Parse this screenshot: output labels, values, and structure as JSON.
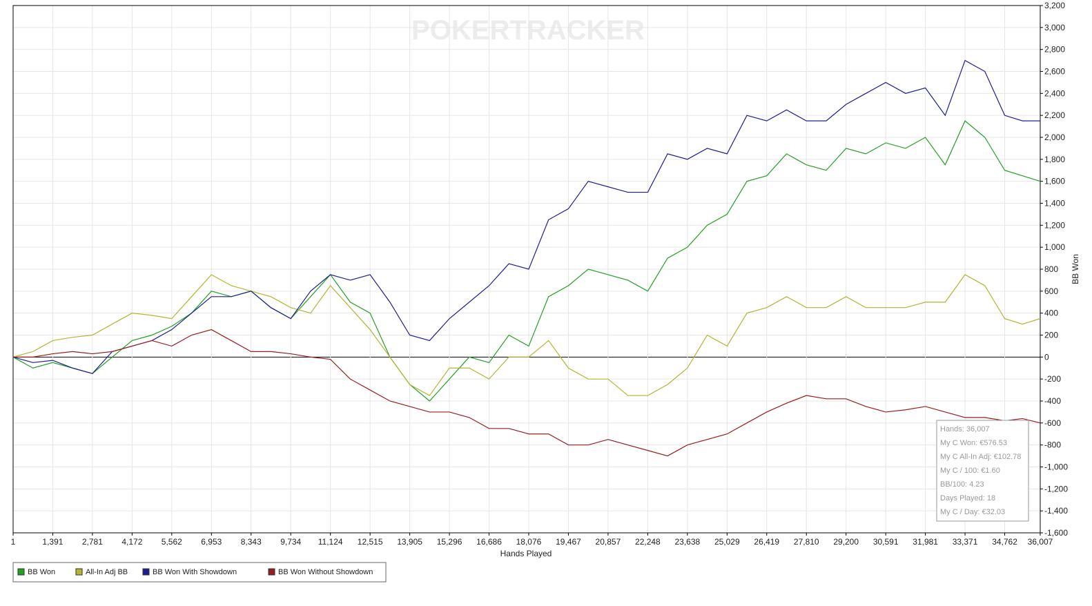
{
  "chart_data": {
    "type": "line",
    "watermark": "POKERTRACKER",
    "xlabel": "Hands Played",
    "ylabel": "BB Won",
    "x": [
      1,
      696,
      1391,
      2086,
      2781,
      3476,
      4172,
      4867,
      5562,
      6257,
      6953,
      7648,
      8343,
      9038,
      9734,
      10429,
      11124,
      11819,
      12515,
      13210,
      13905,
      14600,
      15296,
      15991,
      16686,
      17381,
      18076,
      18771,
      19467,
      20162,
      20857,
      21552,
      22248,
      22943,
      23638,
      24333,
      25029,
      25724,
      26419,
      27114,
      27810,
      28505,
      29200,
      29895,
      30591,
      31286,
      31981,
      32676,
      33371,
      34066,
      34762,
      35384,
      36007
    ],
    "series": [
      {
        "name": "BB Won",
        "color": "#22a022",
        "values": [
          0,
          -100,
          -50,
          -100,
          -150,
          0,
          150,
          200,
          280,
          400,
          600,
          550,
          600,
          450,
          350,
          550,
          750,
          500,
          400,
          0,
          -250,
          -400,
          -200,
          0,
          -50,
          200,
          100,
          550,
          650,
          800,
          750,
          700,
          600,
          900,
          1000,
          1200,
          1300,
          1600,
          1650,
          1850,
          1750,
          1700,
          1900,
          1850,
          1950,
          1900,
          2000,
          1750,
          2150,
          2000,
          1700,
          1650,
          1600
        ]
      },
      {
        "name": "All-In Adj BB",
        "color": "#b4b432",
        "values": [
          0,
          50,
          150,
          180,
          200,
          300,
          400,
          380,
          350,
          550,
          750,
          650,
          600,
          550,
          450,
          400,
          650,
          450,
          250,
          0,
          -250,
          -350,
          -100,
          -100,
          -200,
          0,
          0,
          150,
          -100,
          -200,
          -200,
          -350,
          -350,
          -250,
          -100,
          200,
          100,
          400,
          450,
          550,
          450,
          450,
          550,
          450,
          450,
          450,
          500,
          500,
          750,
          650,
          350,
          300,
          350
        ]
      },
      {
        "name": "BB Won With Showdown",
        "color": "#1c1c96",
        "values": [
          0,
          -50,
          -30,
          -100,
          -150,
          50,
          100,
          150,
          250,
          400,
          550,
          550,
          600,
          450,
          350,
          600,
          750,
          700,
          750,
          500,
          200,
          150,
          350,
          500,
          650,
          850,
          800,
          1250,
          1350,
          1600,
          1550,
          1500,
          1500,
          1850,
          1800,
          1900,
          1850,
          2200,
          2150,
          2250,
          2150,
          2150,
          2300,
          2400,
          2500,
          2400,
          2450,
          2200,
          2700,
          2600,
          2200,
          2150,
          2150
        ]
      },
      {
        "name": "BB Won Without Showdown",
        "color": "#9a1c1c",
        "values": [
          0,
          0,
          30,
          50,
          30,
          50,
          100,
          150,
          100,
          200,
          250,
          150,
          50,
          50,
          30,
          0,
          -20,
          -200,
          -300,
          -400,
          -450,
          -500,
          -500,
          -550,
          -650,
          -650,
          -700,
          -700,
          -800,
          -800,
          -750,
          -800,
          -850,
          -900,
          -800,
          -750,
          -700,
          -600,
          -500,
          -420,
          -350,
          -380,
          -380,
          -450,
          -500,
          -480,
          -450,
          -500,
          -550,
          -550,
          -580,
          -560,
          -600
        ]
      }
    ],
    "xlim": [
      1,
      36007
    ],
    "xticks": [
      1,
      {
        "value": 1391,
        "label": "1,391"
      },
      {
        "value": 2781,
        "label": "2,781"
      },
      {
        "value": 4172,
        "label": "4,172"
      },
      {
        "value": 5562,
        "label": "5,562"
      },
      {
        "value": 6953,
        "label": "6,953"
      },
      {
        "value": 8343,
        "label": "8,343"
      },
      {
        "value": 9734,
        "label": "9,734"
      },
      {
        "value": 11124,
        "label": "11,124"
      },
      {
        "value": 12515,
        "label": "12,515"
      },
      {
        "value": 13905,
        "label": "13,905"
      },
      {
        "value": 15296,
        "label": "15,296"
      },
      {
        "value": 16686,
        "label": "16,686"
      },
      {
        "value": 18076,
        "label": "18,076"
      },
      {
        "value": 19467,
        "label": "19,467"
      },
      {
        "value": 20857,
        "label": "20,857"
      },
      {
        "value": 22248,
        "label": "22,248"
      },
      {
        "value": 23638,
        "label": "23,638"
      },
      {
        "value": 25029,
        "label": "25,029"
      },
      {
        "value": 26419,
        "label": "26,419"
      },
      {
        "value": 27810,
        "label": "27,810"
      },
      {
        "value": 29200,
        "label": "29,200"
      },
      {
        "value": 30591,
        "label": "30,591"
      },
      {
        "value": 31981,
        "label": "31,981"
      },
      {
        "value": 33371,
        "label": "33,371"
      },
      {
        "value": 34762,
        "label": "34,762"
      },
      {
        "value": 36007,
        "label": "36,007"
      }
    ],
    "ylim": [
      -1600,
      3200
    ],
    "yticks": [
      {
        "value": -1600,
        "label": "-1,600"
      },
      {
        "value": -1400,
        "label": "-1,400"
      },
      {
        "value": -1200,
        "label": "-1,200"
      },
      {
        "value": -1000,
        "label": "-1,000"
      },
      -800,
      -600,
      -400,
      -200,
      0,
      200,
      400,
      600,
      800,
      {
        "value": 1000,
        "label": "1,000"
      },
      {
        "value": 1200,
        "label": "1,200"
      },
      {
        "value": 1400,
        "label": "1,400"
      },
      {
        "value": 1600,
        "label": "1,600"
      },
      {
        "value": 1800,
        "label": "1,800"
      },
      {
        "value": 2000,
        "label": "2,000"
      },
      {
        "value": 2200,
        "label": "2,200"
      },
      {
        "value": 2400,
        "label": "2,400"
      },
      {
        "value": 2600,
        "label": "2,600"
      },
      {
        "value": 2800,
        "label": "2,800"
      },
      {
        "value": 3000,
        "label": "3,000"
      },
      {
        "value": 3200,
        "label": "3,200"
      }
    ],
    "grid": true,
    "tooltip": [
      "Hands: 36,007",
      "My C Won: €576.53",
      "My C All-In Adj: €102.78",
      "My C / 100: €1.60",
      "BB/100: 4.23",
      "Days Played: 18",
      "My C / Day: €32.03"
    ]
  }
}
